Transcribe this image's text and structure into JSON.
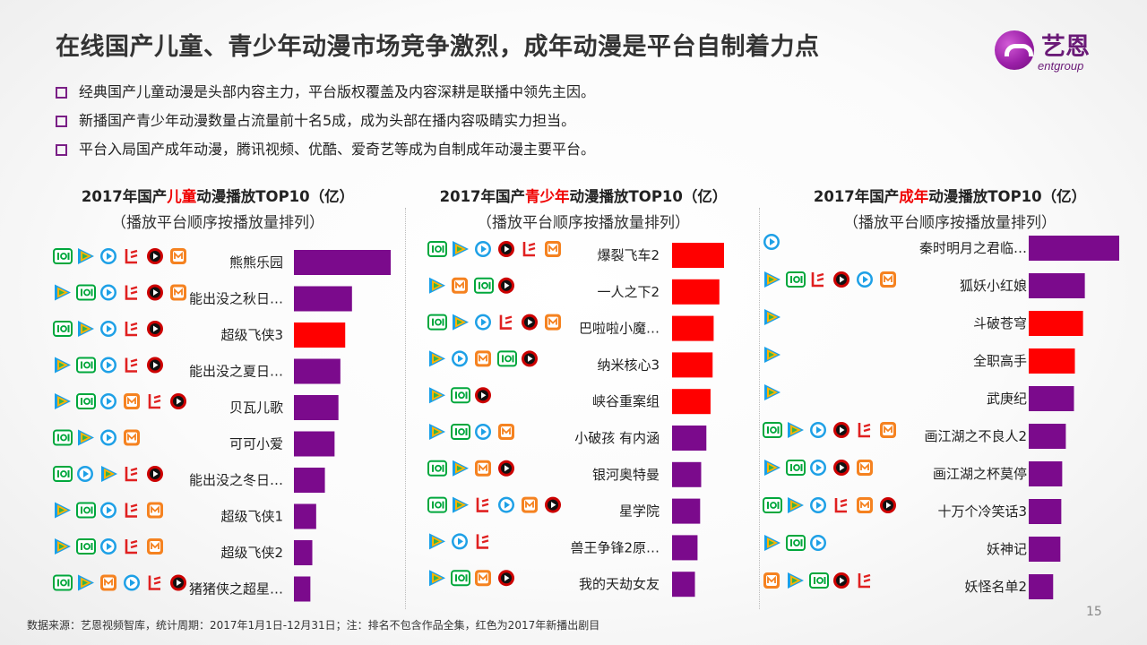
{
  "page": {
    "title": "在线国产儿童、青少年动漫市场竞争激烈，成年动漫是平台自制着力点",
    "bullets": [
      "经典国产儿童动漫是头部内容主力，平台版权覆盖及内容深耕是联播中领先主因。",
      "新播国产青少年动漫数量占流量前十名5成，成为头部在播内容吸睛实力担当。",
      "平台入局国产成年动漫，腾讯视频、优酷、爱奇艺等成为自制成年动漫主要平台。"
    ],
    "footer": "数据来源：艺恩视频智库，统计周期：2017年1月1日-12月31日；注：排名不包含作品全集，红色为2017年新播出剧目",
    "page_number": "15",
    "logo": {
      "cn": "艺恩",
      "en": "entgroup"
    }
  },
  "platform_colors": {
    "iqiyi": "#00a73c",
    "tencent": "#ff8a00",
    "youku": "#1ea0e6",
    "letv": "#e02020",
    "mgtv": "#f58220",
    "sohu": "#cc0000",
    "bar_old": "#7b0a8c",
    "bar_new": "#ff0000"
  },
  "platform_icons": {
    "iqiyi": "iqiyi-icon",
    "tencent": "tencent-video-icon",
    "youku": "youku-icon",
    "letv": "letv-icon",
    "mgtv": "mgtv-icon",
    "sohu": "sohu-icon"
  },
  "chart_data": [
    {
      "type": "bar",
      "orientation": "horizontal",
      "title_parts": [
        "2017年国产",
        "儿童",
        "动漫播放TOP10（亿）"
      ],
      "subtitle": "（播放平台顺序按播放量排列）",
      "xlim": [
        0,
        100
      ],
      "categories": [
        "熊熊乐园",
        "能出没之秋日…",
        "超级飞侠3",
        "能出没之夏日…",
        "贝瓦儿歌",
        "可可小爱",
        "能出没之冬日…",
        "超级飞侠1",
        "超级飞侠2",
        "猪猪侠之超星…"
      ],
      "values": [
        100,
        60,
        53,
        48,
        46,
        42,
        32,
        23,
        19,
        17
      ],
      "is_new": [
        false,
        false,
        true,
        false,
        false,
        false,
        false,
        false,
        false,
        false
      ],
      "platforms": [
        [
          "iqiyi",
          "tencent",
          "youku",
          "letv",
          "sohu",
          "mgtv"
        ],
        [
          "tencent",
          "iqiyi",
          "youku",
          "letv",
          "sohu",
          "mgtv"
        ],
        [
          "iqiyi",
          "tencent",
          "youku",
          "letv",
          "sohu"
        ],
        [
          "tencent",
          "iqiyi",
          "youku",
          "letv",
          "sohu"
        ],
        [
          "tencent",
          "iqiyi",
          "youku",
          "mgtv",
          "letv",
          "sohu"
        ],
        [
          "iqiyi",
          "tencent",
          "youku",
          "mgtv"
        ],
        [
          "iqiyi",
          "youku",
          "tencent",
          "letv",
          "sohu"
        ],
        [
          "tencent",
          "iqiyi",
          "youku",
          "letv",
          "mgtv"
        ],
        [
          "tencent",
          "iqiyi",
          "youku",
          "letv",
          "mgtv"
        ],
        [
          "iqiyi",
          "tencent",
          "mgtv",
          "youku",
          "letv",
          "sohu"
        ]
      ]
    },
    {
      "type": "bar",
      "orientation": "horizontal",
      "title_parts": [
        "2017年国产",
        "青少年",
        "动漫播放TOP10（亿）"
      ],
      "subtitle": "（播放平台顺序按播放量排列）",
      "xlim": [
        0,
        100
      ],
      "categories": [
        "爆裂飞车2",
        "一人之下2",
        "巴啦啦小魔…",
        "纳米核心3",
        "峡谷重案组",
        "小破孩 有内涵",
        "银河奥特曼",
        "星学院",
        "兽王争锋2原…",
        "我的天劫女友"
      ],
      "values": [
        100,
        91,
        80,
        78,
        74,
        66,
        56,
        54,
        49,
        44
      ],
      "is_new": [
        true,
        true,
        true,
        true,
        true,
        false,
        false,
        false,
        false,
        false
      ],
      "platforms": [
        [
          "iqiyi",
          "tencent",
          "youku",
          "sohu",
          "letv",
          "mgtv"
        ],
        [
          "tencent",
          "mgtv",
          "iqiyi",
          "sohu"
        ],
        [
          "iqiyi",
          "tencent",
          "youku",
          "letv",
          "sohu",
          "mgtv"
        ],
        [
          "tencent",
          "youku",
          "mgtv",
          "iqiyi",
          "sohu"
        ],
        [
          "tencent",
          "iqiyi",
          "sohu"
        ],
        [
          "tencent",
          "iqiyi",
          "youku",
          "mgtv"
        ],
        [
          "iqiyi",
          "tencent",
          "mgtv",
          "sohu"
        ],
        [
          "iqiyi",
          "tencent",
          "letv",
          "youku",
          "mgtv",
          "sohu"
        ],
        [
          "tencent",
          "youku",
          "letv"
        ],
        [
          "tencent",
          "iqiyi",
          "mgtv",
          "sohu"
        ]
      ]
    },
    {
      "type": "bar",
      "orientation": "horizontal",
      "title_parts": [
        "2017年国产",
        "成年",
        "动漫播放TOP10（亿）"
      ],
      "subtitle": "（播放平台顺序按播放量排列）",
      "xlim": [
        0,
        100
      ],
      "categories": [
        "秦时明月之君临…",
        "狐妖小红娘",
        "斗破苍穹",
        "全职高手",
        "武庚纪",
        "画江湖之不良人2",
        "画江湖之杯莫停",
        "十万个冷笑话3",
        "妖神记",
        "妖怪名单2"
      ],
      "values": [
        100,
        62,
        60,
        51,
        50,
        41,
        37,
        36,
        35,
        27
      ],
      "is_new": [
        false,
        false,
        true,
        true,
        false,
        false,
        false,
        false,
        false,
        false
      ],
      "platforms": [
        [
          "youku"
        ],
        [
          "tencent",
          "iqiyi",
          "letv",
          "sohu",
          "youku",
          "mgtv"
        ],
        [
          "tencent"
        ],
        [
          "tencent"
        ],
        [
          "tencent"
        ],
        [
          "iqiyi",
          "tencent",
          "youku",
          "sohu",
          "letv",
          "mgtv"
        ],
        [
          "tencent",
          "iqiyi",
          "youku",
          "sohu",
          "mgtv"
        ],
        [
          "iqiyi",
          "tencent",
          "youku",
          "letv",
          "mgtv",
          "sohu"
        ],
        [
          "tencent",
          "iqiyi",
          "youku"
        ],
        [
          "mgtv",
          "tencent",
          "iqiyi",
          "sohu",
          "letv"
        ]
      ]
    }
  ]
}
